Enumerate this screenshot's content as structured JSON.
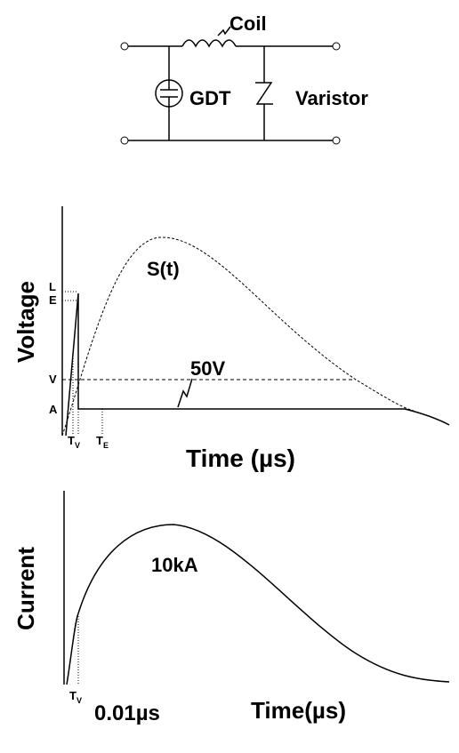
{
  "circuit": {
    "coil": "Coil",
    "gdt": "GDT",
    "varistor": "Varistor"
  },
  "voltage_plot": {
    "y_label": "Voltage",
    "levels": [
      "L",
      "E",
      "V",
      "A"
    ],
    "x_ticks": [
      {
        "main": "T",
        "sub": "V"
      },
      {
        "main": "T",
        "sub": "E"
      }
    ],
    "curve_label": "S(t)",
    "annotation": "50V",
    "x_label": "Time (µs)"
  },
  "current_plot": {
    "y_label": "Current",
    "peak_label": "10kA",
    "x_tick": {
      "main": "T",
      "sub": "V"
    },
    "x_tick_note": "0.01µs",
    "x_label": "Time(µs)"
  }
}
